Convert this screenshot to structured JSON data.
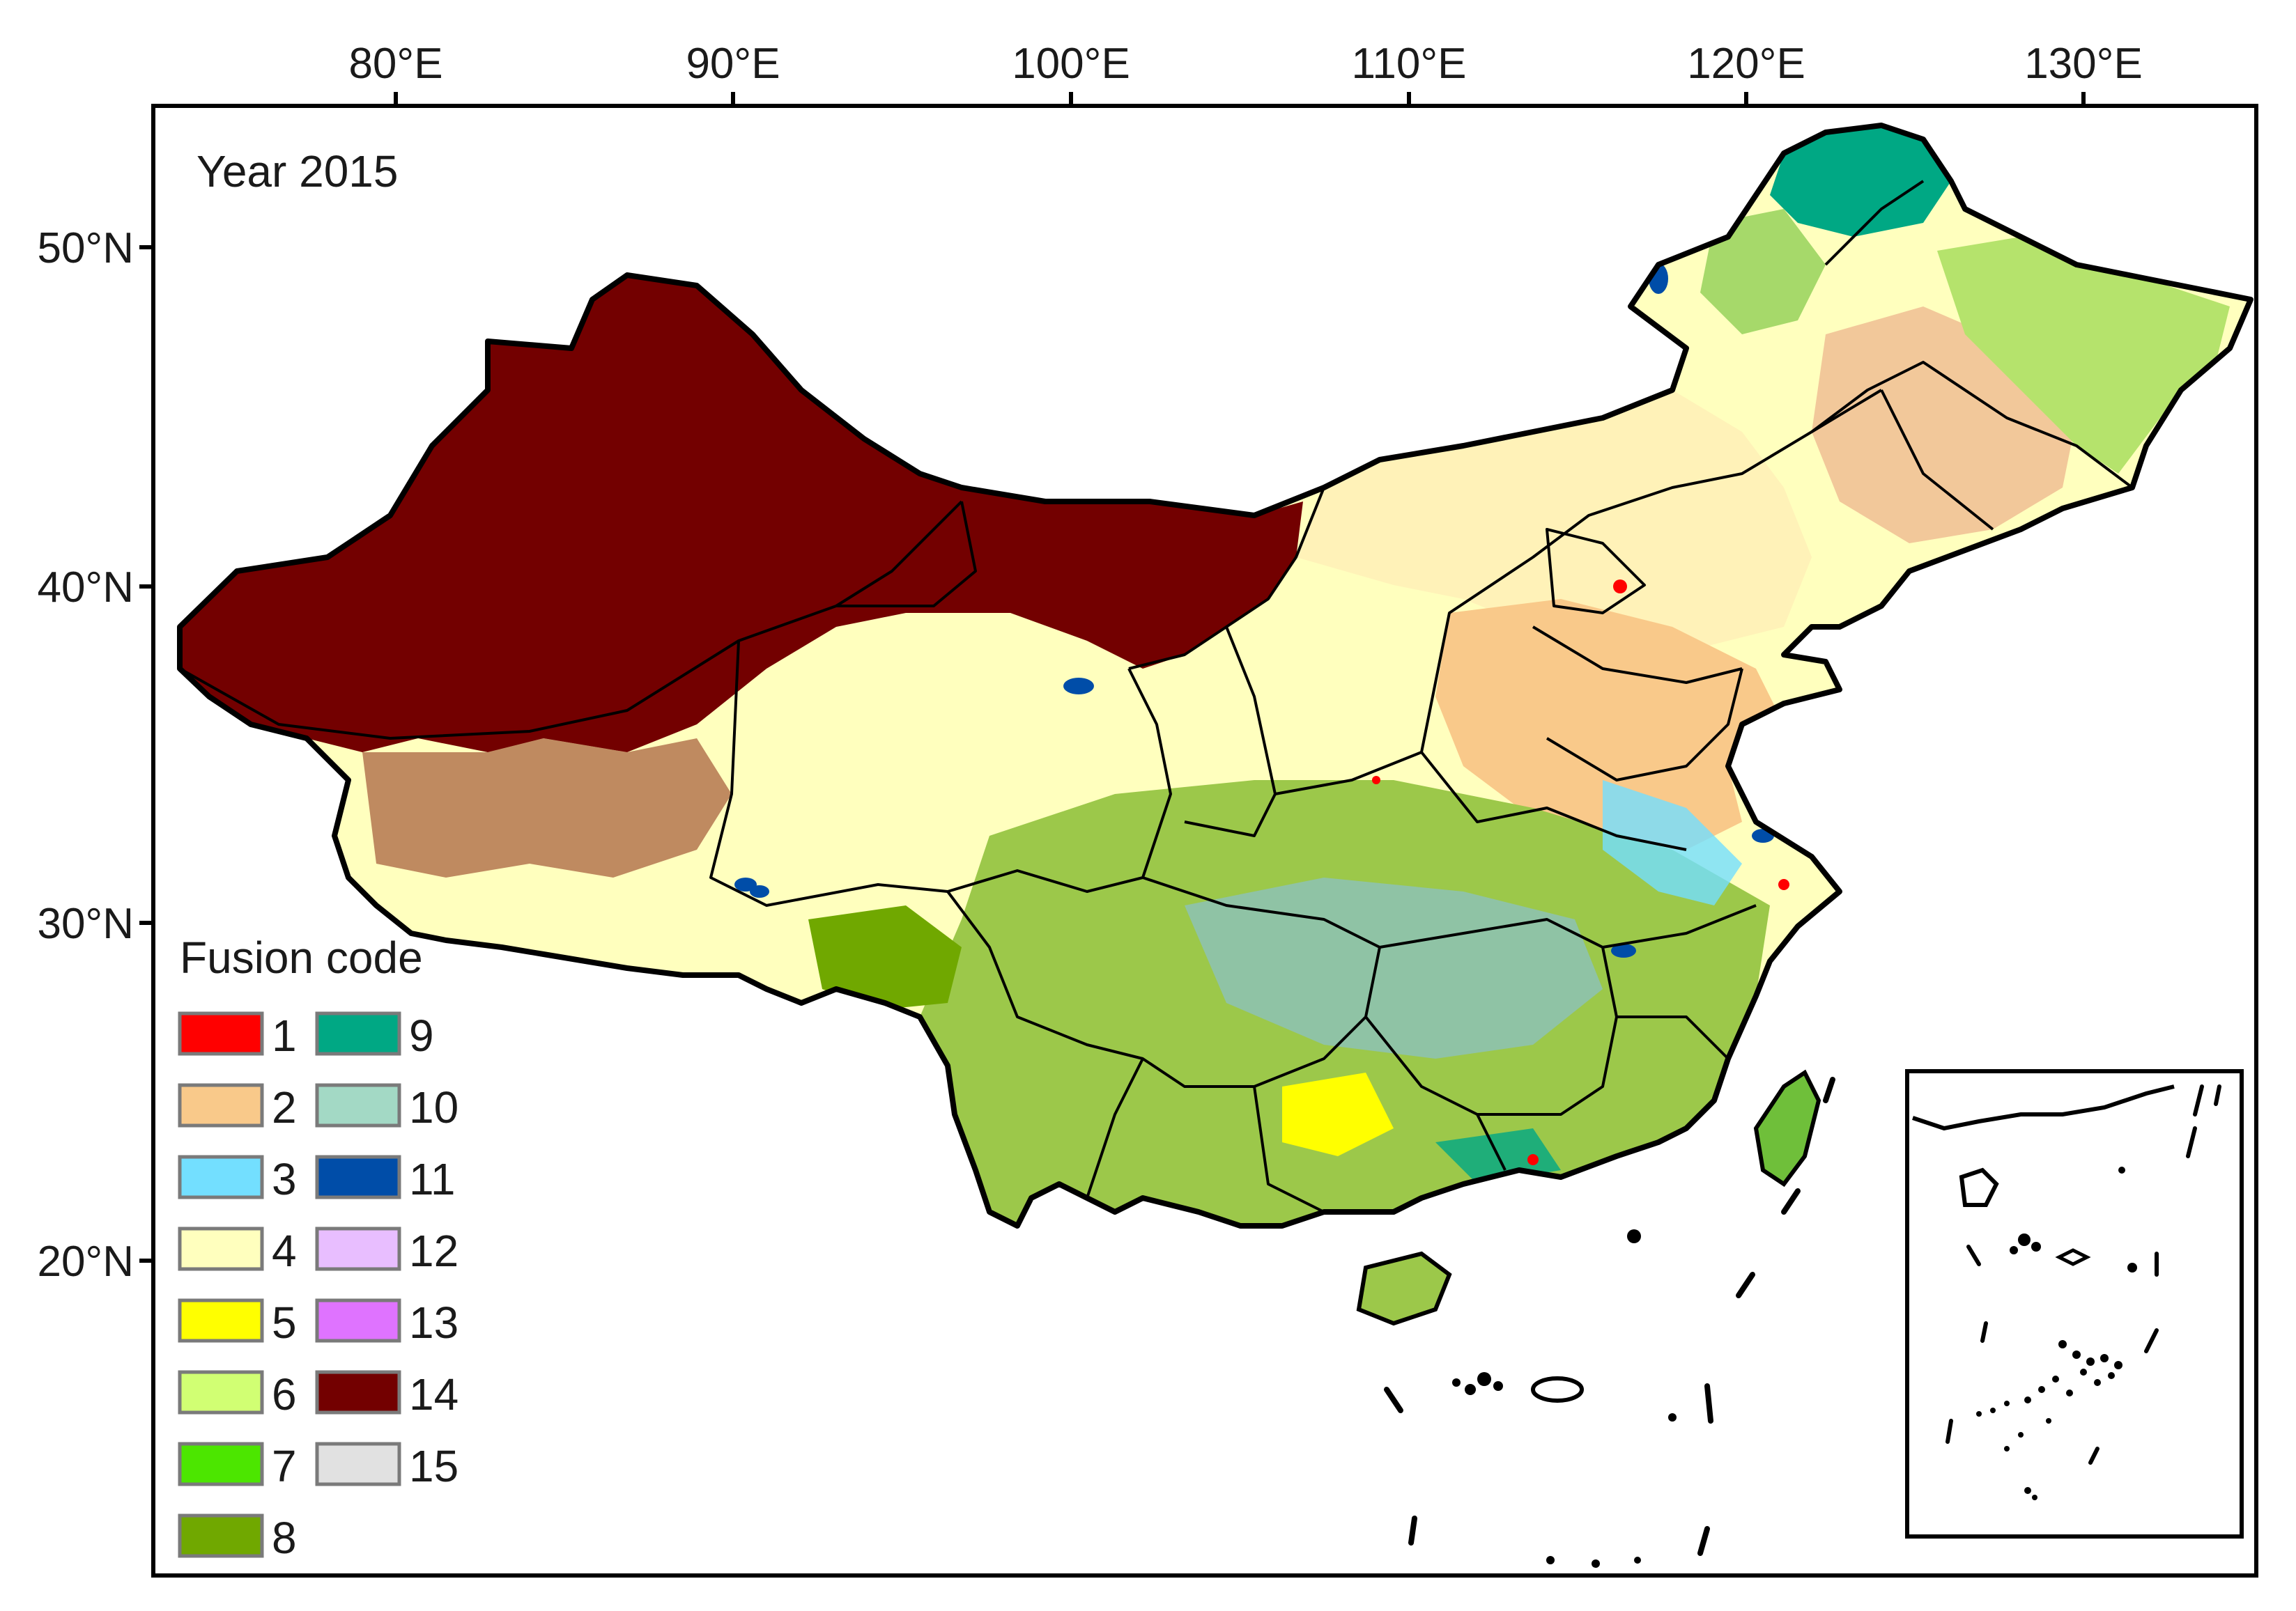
{
  "map": {
    "year_label": "Year 2015",
    "legend_title": "Fusion code",
    "lon_ticks": [
      "80°E",
      "90°E",
      "100°E",
      "110°E",
      "120°E",
      "130°E"
    ],
    "lat_ticks": [
      "50°N",
      "40°N",
      "30°N",
      "20°N"
    ],
    "legend": [
      {
        "code": "1",
        "color": "#ff0000"
      },
      {
        "code": "2",
        "color": "#f9c98a"
      },
      {
        "code": "3",
        "color": "#73dfff"
      },
      {
        "code": "4",
        "color": "#ffffbe"
      },
      {
        "code": "5",
        "color": "#ffff00"
      },
      {
        "code": "6",
        "color": "#d1ff73"
      },
      {
        "code": "7",
        "color": "#4ce600"
      },
      {
        "code": "8",
        "color": "#70a800"
      },
      {
        "code": "9",
        "color": "#00a884"
      },
      {
        "code": "10",
        "color": "#a3d9c5"
      },
      {
        "code": "11",
        "color": "#004da8"
      },
      {
        "code": "12",
        "color": "#e8beff"
      },
      {
        "code": "13",
        "color": "#df73ff"
      },
      {
        "code": "14",
        "color": "#730000"
      },
      {
        "code": "15",
        "color": "#e1e1e1"
      }
    ]
  }
}
